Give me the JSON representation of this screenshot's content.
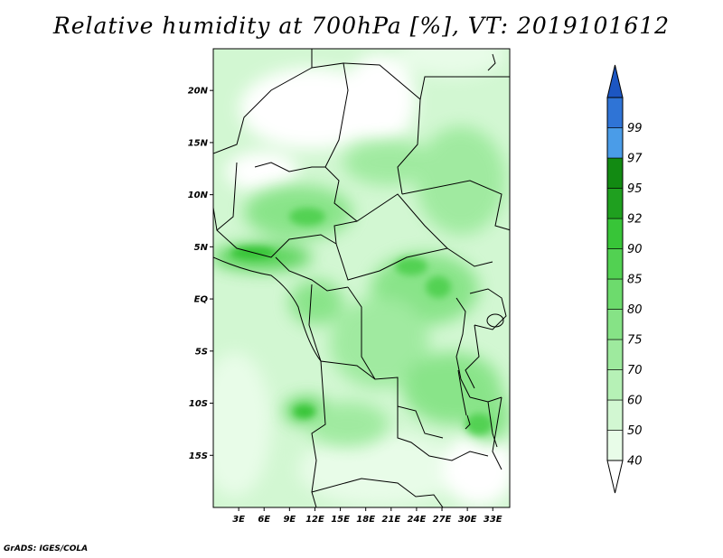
{
  "title": "Relative humidity at 700hPa [%], VT: 2019101612",
  "credit": "GrADS: IGES/COLA",
  "map": {
    "lat_ticks": [
      "20N",
      "15N",
      "10N",
      "5N",
      "EQ",
      "5S",
      "10S",
      "15S"
    ],
    "lon_ticks": [
      "3E",
      "6E",
      "9E",
      "12E",
      "15E",
      "18E",
      "21E",
      "24E",
      "27E",
      "30E",
      "33E"
    ],
    "lon_range": [
      0,
      35
    ],
    "lat_range": [
      -20,
      24
    ]
  },
  "colorbar": {
    "labels": [
      "40",
      "50",
      "60",
      "70",
      "75",
      "80",
      "85",
      "90",
      "92",
      "95",
      "97",
      "99"
    ],
    "colors": [
      "#ffffff",
      "#e8fce8",
      "#d2f7d2",
      "#b6f1b6",
      "#9eea9e",
      "#86e386",
      "#6ddb6d",
      "#52d152",
      "#38c538",
      "#1fa01f",
      "#128a12",
      "#4a9ce8",
      "#2f74d6",
      "#1c56c2"
    ]
  },
  "colors": {
    "frame": "#000000",
    "coast": "#000000"
  }
}
